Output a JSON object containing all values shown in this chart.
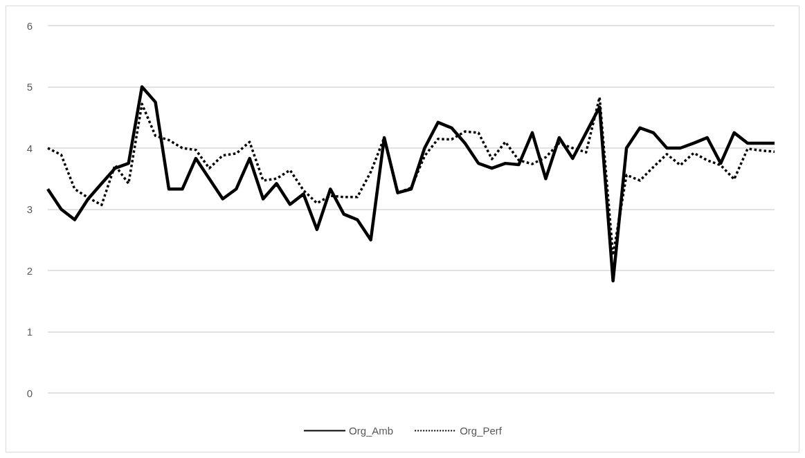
{
  "chart_data": {
    "type": "line",
    "categories": [
      null,
      null,
      null,
      null,
      null,
      null,
      null,
      null,
      null,
      null,
      null,
      null,
      null,
      null,
      null,
      null,
      null,
      null,
      null,
      null,
      null,
      null,
      null,
      null,
      null,
      null,
      null,
      null,
      null,
      null,
      null,
      null,
      null,
      null,
      null,
      null,
      null,
      null,
      null,
      null,
      null,
      null,
      null,
      null,
      null,
      null,
      null,
      null,
      null,
      null,
      null,
      null,
      null,
      null,
      null
    ],
    "series": [
      {
        "name": "Org_Amb",
        "color": "#000000",
        "line_style": "solid",
        "values": [
          3.33,
          3.0,
          2.83,
          3.17,
          3.42,
          3.67,
          3.75,
          5.0,
          4.75,
          3.33,
          3.33,
          3.83,
          3.5,
          3.17,
          3.33,
          3.83,
          3.17,
          3.42,
          3.08,
          3.25,
          2.67,
          3.33,
          2.92,
          2.83,
          2.5,
          4.17,
          3.27,
          3.33,
          4.0,
          4.42,
          4.33,
          4.08,
          3.75,
          3.67,
          3.75,
          3.73,
          4.25,
          3.5,
          4.17,
          3.83,
          4.25,
          4.67,
          1.83,
          4.0,
          4.33,
          4.25,
          4.0,
          4.0,
          4.08,
          4.17,
          3.75,
          4.25,
          4.08,
          4.08,
          4.08
        ]
      },
      {
        "name": "Org_Perf",
        "color": "#000000",
        "line_style": "dotted",
        "values": [
          4.0,
          3.89,
          3.33,
          3.19,
          3.07,
          3.72,
          3.42,
          4.72,
          4.2,
          4.13,
          4.0,
          3.97,
          3.67,
          3.88,
          3.91,
          4.1,
          3.47,
          3.5,
          3.64,
          3.31,
          3.1,
          3.22,
          3.2,
          3.2,
          3.61,
          4.17,
          3.27,
          3.35,
          3.87,
          4.15,
          4.14,
          4.27,
          4.25,
          3.82,
          4.1,
          3.8,
          3.74,
          3.85,
          4.08,
          4.0,
          3.93,
          4.83,
          2.25,
          3.56,
          3.47,
          3.69,
          3.9,
          3.72,
          3.92,
          3.8,
          3.72,
          3.49,
          3.99,
          3.96,
          3.94
        ]
      }
    ],
    "ylim": [
      0,
      6
    ],
    "yticks": [
      0,
      1,
      2,
      3,
      4,
      5,
      6
    ],
    "grid": "y",
    "legend": "bottom",
    "marker": "none"
  }
}
